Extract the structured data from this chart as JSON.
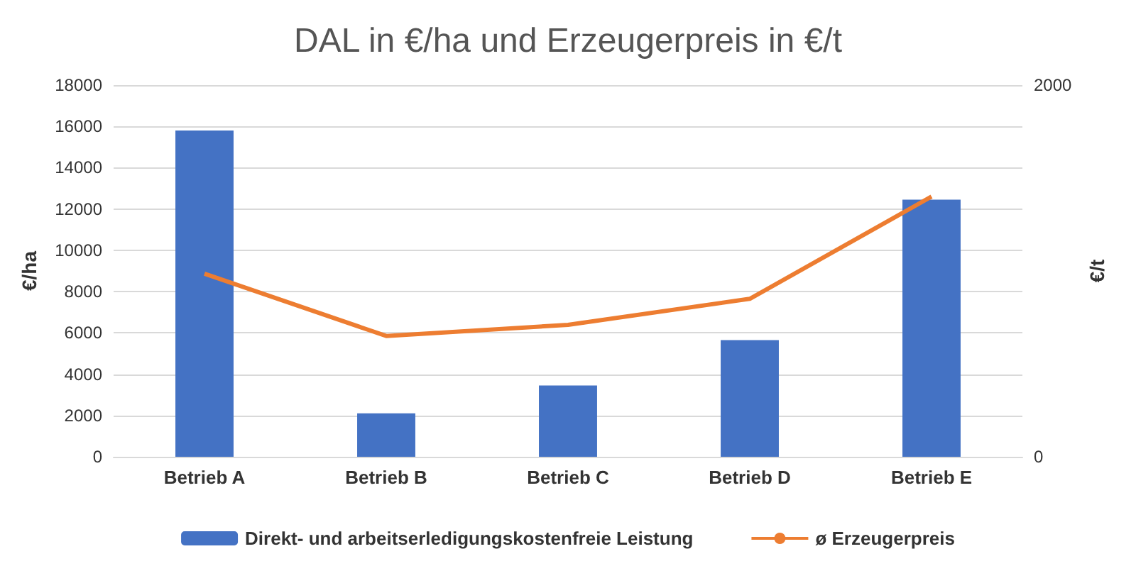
{
  "chart_data": {
    "type": "bar",
    "title": "DAL in €/ha und Erzeugerpreis in €/t",
    "ylabel": "€/ha",
    "y2label": "€/t",
    "categories": [
      "Betrieb A",
      "Betrieb B",
      "Betrieb C",
      "Betrieb D",
      "Betrieb E"
    ],
    "series": [
      {
        "name": "Direkt- und arbeitserledigungskostenfreie Leistung",
        "color": "#4472c4",
        "values": [
          15800,
          2100,
          3450,
          5650,
          12450
        ]
      },
      {
        "name": "ø Erzeugerpreis",
        "type": "line",
        "axis": "y2",
        "color": "#ed7d31",
        "values": [
          985,
          650,
          710,
          850,
          1400
        ]
      }
    ],
    "ylim": [
      0,
      18000
    ],
    "yticks": [
      0,
      2000,
      4000,
      6000,
      8000,
      10000,
      12000,
      14000,
      16000,
      18000
    ],
    "y2lim": [
      0,
      2000
    ],
    "y2ticks": [
      0,
      2000
    ],
    "grid": "y",
    "legend": "bottom",
    "marker": "none"
  }
}
